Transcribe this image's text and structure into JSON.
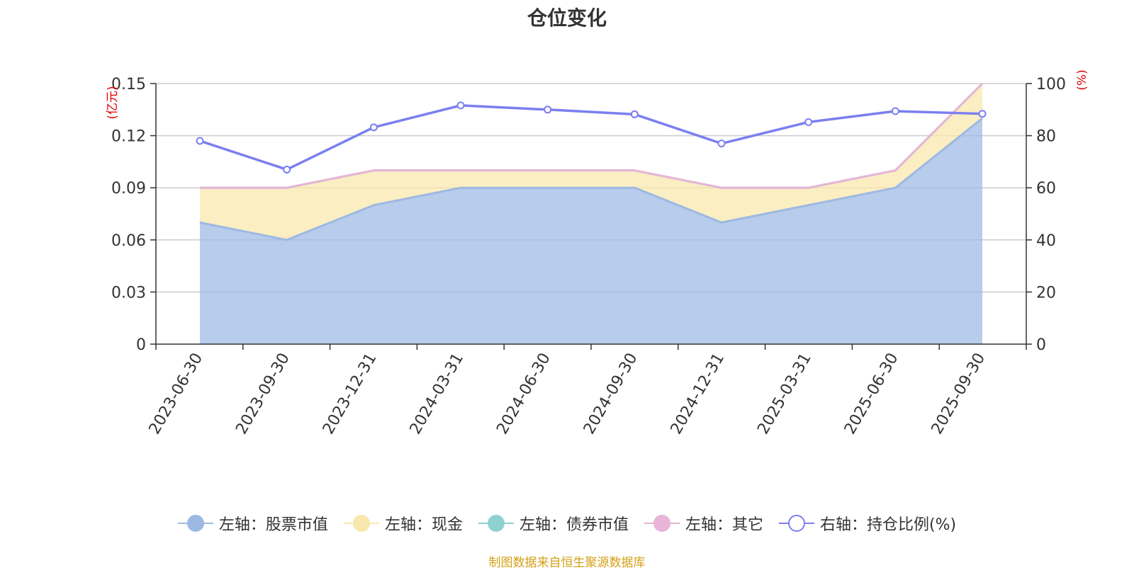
{
  "title": "仓位变化",
  "source_note": "制图数据来自恒生聚源数据库",
  "chart_data": {
    "type": "area",
    "x": [
      "2023-06-30",
      "2023-09-30",
      "2023-12-31",
      "2024-03-31",
      "2024-06-30",
      "2024-09-30",
      "2024-12-31",
      "2025-03-31",
      "2025-06-30",
      "2025-09-30"
    ],
    "left_axis": {
      "unit": "(亿元)",
      "ylim": [
        0,
        0.15
      ],
      "ticks": [
        "0",
        "0.03",
        "0.06",
        "0.09",
        "0.12",
        "0.15"
      ]
    },
    "right_axis": {
      "unit": "(%)",
      "ylim": [
        0,
        100
      ],
      "ticks": [
        "0",
        "20",
        "40",
        "60",
        "80",
        "100"
      ]
    },
    "stacked": true,
    "series": [
      {
        "name": "左轴：股票市值",
        "axis": "left",
        "type": "area",
        "color": "#9db9e3",
        "values": [
          0.07,
          0.06,
          0.08,
          0.09,
          0.09,
          0.09,
          0.07,
          0.08,
          0.09,
          0.13
        ]
      },
      {
        "name": "左轴：现金",
        "axis": "left",
        "type": "area",
        "color": "#f8e8ad",
        "values": [
          0.02,
          0.03,
          0.02,
          0.01,
          0.01,
          0.01,
          0.02,
          0.01,
          0.01,
          0.02
        ]
      },
      {
        "name": "左轴：债券市值",
        "axis": "left",
        "type": "area",
        "color": "#8fd1d1",
        "values": [
          0,
          0,
          0,
          0,
          0,
          0,
          0,
          0,
          0,
          0
        ]
      },
      {
        "name": "左轴：其它",
        "axis": "left",
        "type": "area",
        "color": "#e8b4d8",
        "values": [
          0,
          0,
          0,
          0,
          0,
          0,
          0,
          0,
          0,
          0
        ]
      },
      {
        "name": "右轴：持仓比例(%)",
        "axis": "right",
        "type": "line",
        "color": "#7b7ff0",
        "values": [
          78.0,
          67.0,
          83.2,
          91.6,
          90.0,
          88.2,
          77.0,
          85.2,
          89.4,
          88.4
        ]
      }
    ],
    "grid": true,
    "legend_position": "bottom"
  }
}
